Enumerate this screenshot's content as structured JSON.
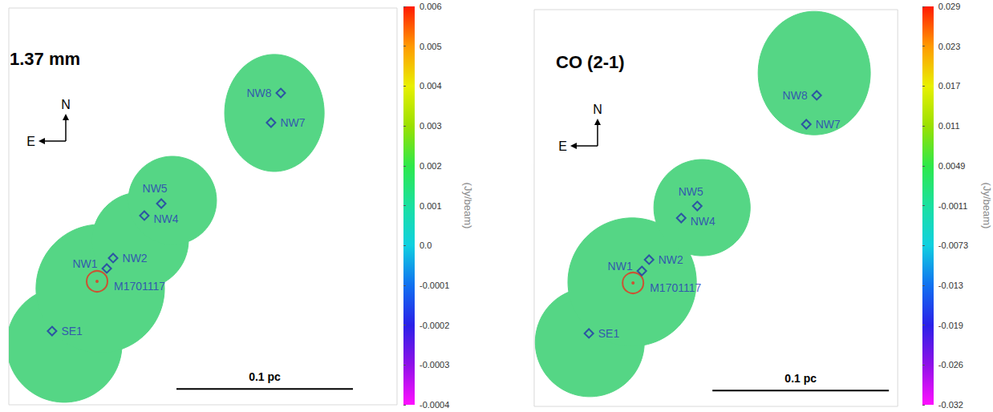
{
  "chart_data": [
    {
      "type": "scatter",
      "title": "1.37 mm",
      "tick_labels": false,
      "xlim": [
        -0.05,
        0.17
      ],
      "ylim": [
        -0.07,
        0.155
      ],
      "compass": {
        "north": "N",
        "east": "E"
      },
      "scale_bar": {
        "length": 0.1,
        "label": "0.1 pc"
      },
      "fields": [
        {
          "x": -0.0186,
          "y": -0.0359,
          "rx": 0.0327,
          "ry": 0.0327
        },
        {
          "x": 0.0018,
          "y": -0.0041,
          "rx": 0.0364,
          "ry": 0.0364
        },
        {
          "x": 0.0245,
          "y": 0.0232,
          "rx": 0.0273,
          "ry": 0.0273
        },
        {
          "x": 0.0427,
          "y": 0.0459,
          "rx": 0.025,
          "ry": 0.025
        },
        {
          "x": 0.1005,
          "y": 0.0955,
          "rx": 0.0282,
          "ry": 0.0332
        }
      ],
      "sources": [
        {
          "marker": "circle",
          "color": "#e8321e",
          "points": [
            {
              "label": "M1701117",
              "x": 0,
              "y": 0
            }
          ]
        },
        {
          "marker": "diamond",
          "color": "#2233aa",
          "points": [
            {
              "label": "NW1",
              "x": 0.0055,
              "y": 0.0073
            },
            {
              "label": "NW2",
              "x": 0.0091,
              "y": 0.0132
            },
            {
              "label": "NW4",
              "x": 0.0268,
              "y": 0.0373
            },
            {
              "label": "NW5",
              "x": 0.0364,
              "y": 0.0441
            },
            {
              "label": "NW7",
              "x": 0.0986,
              "y": 0.09
            },
            {
              "label": "NW8",
              "x": 0.1041,
              "y": 0.1068
            },
            {
              "label": "SE1",
              "x": -0.0255,
              "y": -0.0282
            }
          ]
        }
      ],
      "colorbar": {
        "label": "(Jy/beam)",
        "ticks": [
          -0.0004,
          -0.0003,
          -0.0002,
          -0.0001,
          {
            "value": 0,
            "label": "0.0"
          },
          0.001,
          0.002,
          0.003,
          0.004,
          0.005,
          0.006
        ]
      }
    },
    {
      "type": "scatter",
      "title": "CO (2-1)",
      "tick_labels": false,
      "xlim": [
        -0.056,
        0.15
      ],
      "ylim": [
        -0.07,
        0.155
      ],
      "compass": {
        "north": "N",
        "east": "E"
      },
      "scale_bar": {
        "length": 0.1,
        "label": "0.1 pc"
      },
      "fields": [
        {
          "x": -0.0245,
          "y": -0.0336,
          "rx": 0.0309,
          "ry": 0.0309
        },
        {
          "x": -0.0005,
          "y": 0.0005,
          "rx": 0.0364,
          "ry": 0.0364
        },
        {
          "x": 0.0391,
          "y": 0.0427,
          "rx": 0.0273,
          "ry": 0.0273
        },
        {
          "x": 0.1027,
          "y": 0.119,
          "rx": 0.0318,
          "ry": 0.035
        }
      ],
      "sources": [
        {
          "marker": "circle",
          "color": "#e8321e",
          "points": [
            {
              "label": "M1701117",
              "x": 0,
              "y": 0
            }
          ]
        },
        {
          "marker": "diamond",
          "color": "#2233aa",
          "points": [
            {
              "label": "NW1",
              "x": 0.005,
              "y": 0.0068
            },
            {
              "label": "NW2",
              "x": 0.0091,
              "y": 0.0132
            },
            {
              "label": "NW4",
              "x": 0.0273,
              "y": 0.0368
            },
            {
              "label": "NW5",
              "x": 0.0364,
              "y": 0.0436
            },
            {
              "label": "NW7",
              "x": 0.0982,
              "y": 0.09
            },
            {
              "label": "NW8",
              "x": 0.1041,
              "y": 0.1064
            },
            {
              "label": "SE1",
              "x": -0.025,
              "y": -0.0286
            }
          ]
        }
      ],
      "colorbar": {
        "label": "(Jy/beam)",
        "ticks": [
          -0.032,
          -0.026,
          -0.019,
          -0.013,
          -0.0073,
          -0.0011,
          0.0049,
          0.011,
          0.017,
          0.023,
          0.029
        ]
      }
    }
  ]
}
